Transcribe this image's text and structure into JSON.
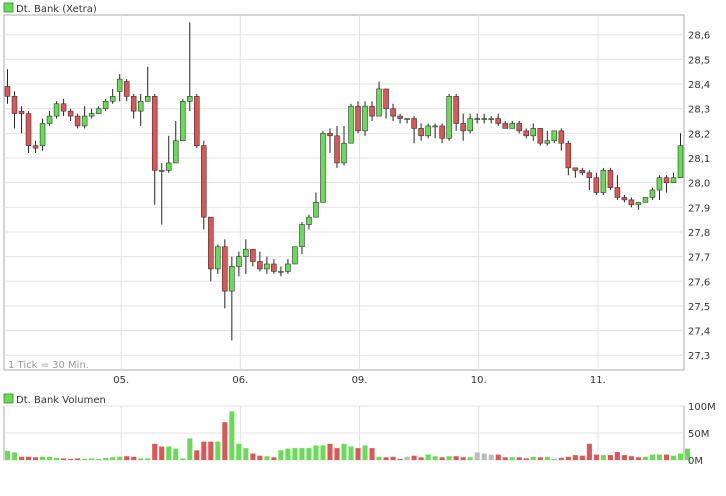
{
  "price_chart": {
    "legend_label": "Dt. Bank (Xetra)",
    "footnote": "1 Tick = 30 Min.",
    "colors": {
      "up": "#66dd55",
      "down": "#dd5555",
      "neutral": "#bbbbbb",
      "grid": "#e3e3e3"
    }
  },
  "volume_chart": {
    "legend_label": "Dt. Bank Volumen"
  },
  "chart_data": [
    {
      "type": "candlestick",
      "title": "Dt. Bank (Xetra)",
      "x_tick_labels": [
        "05.",
        "06.",
        "09.",
        "10.",
        "11."
      ],
      "y_tick_labels": [
        "27,3",
        "27,4",
        "27,5",
        "27,6",
        "27,7",
        "27,8",
        "27,9",
        "28,0",
        "28,1",
        "28,2",
        "28,3",
        "28,4",
        "28,5",
        "28,6"
      ],
      "ylim": [
        27.24,
        28.68
      ],
      "grid": true,
      "candles": [
        [
          28.39,
          28.35,
          28.46,
          28.32
        ],
        [
          28.35,
          28.28,
          28.37,
          28.22
        ],
        [
          28.29,
          28.28,
          28.31,
          28.2
        ],
        [
          28.28,
          28.15,
          28.29,
          28.12
        ],
        [
          28.15,
          28.14,
          28.17,
          28.12
        ],
        [
          28.15,
          28.24,
          28.26,
          28.13
        ],
        [
          28.24,
          28.27,
          28.29,
          28.23
        ],
        [
          28.27,
          28.32,
          28.33,
          28.26
        ],
        [
          28.32,
          28.29,
          28.34,
          28.27
        ],
        [
          28.29,
          28.27,
          28.3,
          28.25
        ],
        [
          28.27,
          28.23,
          28.28,
          28.22
        ],
        [
          28.23,
          28.27,
          28.31,
          28.22
        ],
        [
          28.27,
          28.28,
          28.3,
          28.26
        ],
        [
          28.28,
          28.3,
          28.31,
          28.28
        ],
        [
          28.3,
          28.33,
          28.34,
          28.29
        ],
        [
          28.33,
          28.35,
          28.38,
          28.32
        ],
        [
          28.37,
          28.42,
          28.44,
          28.33
        ],
        [
          28.41,
          28.35,
          28.42,
          28.33
        ],
        [
          28.35,
          28.29,
          28.36,
          28.26
        ],
        [
          28.29,
          28.33,
          28.36,
          28.23
        ],
        [
          28.33,
          28.35,
          28.47,
          28.33
        ],
        [
          28.35,
          28.05,
          28.36,
          27.91
        ],
        [
          28.05,
          28.05,
          28.08,
          27.83
        ],
        [
          28.05,
          28.08,
          28.19,
          28.04
        ],
        [
          28.08,
          28.17,
          28.25,
          28.08
        ],
        [
          28.17,
          28.33,
          28.34,
          28.17
        ],
        [
          28.33,
          28.35,
          28.65,
          28.29
        ],
        [
          28.35,
          28.15,
          28.36,
          28.14
        ],
        [
          28.15,
          27.86,
          28.17,
          27.81
        ],
        [
          27.86,
          27.65,
          27.86,
          27.6
        ],
        [
          27.65,
          27.74,
          27.75,
          27.63
        ],
        [
          27.74,
          27.56,
          27.77,
          27.49
        ],
        [
          27.56,
          27.66,
          27.7,
          27.36
        ],
        [
          27.66,
          27.7,
          27.72,
          27.62
        ],
        [
          27.7,
          27.73,
          27.77,
          27.63
        ],
        [
          27.73,
          27.68,
          27.73,
          27.66
        ],
        [
          27.68,
          27.65,
          27.72,
          27.64
        ],
        [
          27.65,
          27.67,
          27.7,
          27.63
        ],
        [
          27.67,
          27.64,
          27.69,
          27.63
        ],
        [
          27.64,
          27.64,
          27.66,
          27.62
        ],
        [
          27.64,
          27.67,
          27.69,
          27.63
        ],
        [
          27.67,
          27.74,
          27.74,
          27.67
        ],
        [
          27.74,
          27.83,
          27.84,
          27.71
        ],
        [
          27.83,
          27.86,
          27.87,
          27.81
        ],
        [
          27.86,
          27.92,
          27.96,
          27.86
        ],
        [
          27.92,
          28.2,
          28.21,
          27.92
        ],
        [
          28.2,
          28.19,
          28.22,
          28.12
        ],
        [
          28.19,
          28.08,
          28.23,
          28.06
        ],
        [
          28.08,
          28.16,
          28.23,
          28.07
        ],
        [
          28.16,
          28.31,
          28.32,
          28.16
        ],
        [
          28.31,
          28.21,
          28.33,
          28.2
        ],
        [
          28.21,
          28.31,
          28.33,
          28.19
        ],
        [
          28.31,
          28.27,
          28.33,
          28.25
        ],
        [
          28.27,
          28.38,
          28.41,
          28.27
        ],
        [
          28.38,
          28.3,
          28.36,
          28.26
        ],
        [
          28.3,
          28.27,
          28.32,
          28.25
        ],
        [
          28.27,
          28.26,
          28.28,
          28.24
        ],
        [
          28.26,
          28.26,
          28.26,
          28.24
        ],
        [
          28.26,
          28.22,
          28.27,
          28.16
        ],
        [
          28.22,
          28.19,
          28.24,
          28.17
        ],
        [
          28.19,
          28.23,
          28.24,
          28.18
        ],
        [
          28.23,
          28.23,
          28.24,
          28.18
        ],
        [
          28.23,
          28.18,
          28.24,
          28.16
        ],
        [
          28.18,
          28.35,
          28.36,
          28.17
        ],
        [
          28.35,
          28.24,
          28.36,
          28.21
        ],
        [
          28.24,
          28.21,
          28.28,
          28.17
        ],
        [
          28.21,
          28.26,
          28.28,
          28.2
        ],
        [
          28.26,
          28.26,
          28.28,
          28.24
        ],
        [
          28.26,
          28.26,
          28.28,
          28.24
        ],
        [
          28.26,
          28.26,
          28.27,
          28.24
        ],
        [
          28.26,
          28.24,
          28.28,
          28.23
        ],
        [
          28.24,
          28.22,
          28.25,
          28.22
        ],
        [
          28.22,
          28.24,
          28.25,
          28.22
        ],
        [
          28.24,
          28.21,
          28.25,
          28.2
        ],
        [
          28.21,
          28.19,
          28.22,
          28.18
        ],
        [
          28.19,
          28.22,
          28.24,
          28.17
        ],
        [
          28.22,
          28.16,
          28.22,
          28.15
        ],
        [
          28.16,
          28.17,
          28.21,
          28.15
        ],
        [
          28.17,
          28.21,
          28.21,
          28.16
        ],
        [
          28.21,
          28.16,
          28.22,
          28.13
        ],
        [
          28.16,
          28.06,
          28.17,
          28.03
        ],
        [
          28.06,
          28.05,
          28.06,
          28.02
        ],
        [
          28.05,
          28.04,
          28.06,
          28.03
        ],
        [
          28.04,
          28.02,
          28.05,
          27.97
        ],
        [
          28.02,
          27.96,
          28.04,
          27.95
        ],
        [
          27.96,
          28.05,
          28.06,
          27.95
        ],
        [
          28.05,
          27.98,
          28.06,
          27.97
        ],
        [
          27.98,
          27.94,
          28.03,
          27.93
        ],
        [
          27.94,
          27.93,
          27.95,
          27.92
        ],
        [
          27.93,
          27.91,
          27.94,
          27.9
        ],
        [
          27.91,
          27.92,
          27.92,
          27.89
        ],
        [
          27.92,
          27.94,
          27.94,
          27.92
        ],
        [
          27.94,
          27.97,
          27.98,
          27.93
        ],
        [
          27.97,
          28.02,
          28.03,
          27.93
        ],
        [
          28.02,
          28.0,
          28.03,
          27.96
        ],
        [
          28.0,
          28.02,
          28.04,
          28.0
        ],
        [
          28.02,
          28.15,
          28.2,
          28.02
        ]
      ]
    },
    {
      "type": "bar",
      "title": "Dt. Bank Volumen",
      "y_tick_labels": [
        "0M",
        "50M",
        "100M"
      ],
      "ylim": [
        0,
        100
      ],
      "values": [
        17,
        14,
        6,
        6,
        5,
        6,
        6,
        4,
        3,
        2,
        3,
        2,
        3,
        2,
        4,
        5,
        6,
        7,
        6,
        3,
        3,
        30,
        25,
        25,
        21,
        3,
        40,
        18,
        34,
        34,
        34,
        70,
        90,
        30,
        22,
        12,
        8,
        7,
        5,
        18,
        21,
        22,
        22,
        22,
        27,
        27,
        30,
        22,
        30,
        25,
        22,
        27,
        22,
        6,
        5,
        6,
        2,
        6,
        8,
        5,
        10,
        7,
        5,
        7,
        7,
        5,
        5,
        14,
        12,
        10,
        10,
        5,
        5,
        5,
        3,
        6,
        5,
        6,
        2,
        4,
        6,
        9,
        8,
        30,
        10,
        9,
        9,
        15,
        9,
        7,
        5,
        6,
        10,
        10,
        10,
        8,
        12,
        21
      ],
      "colors": [
        "g",
        "g",
        "r",
        "r",
        "r",
        "g",
        "g",
        "g",
        "r",
        "r",
        "r",
        "g",
        "g",
        "g",
        "g",
        "g",
        "g",
        "r",
        "r",
        "g",
        "g",
        "r",
        "r",
        "g",
        "g",
        "g",
        "g",
        "r",
        "r",
        "r",
        "g",
        "r",
        "g",
        "g",
        "g",
        "r",
        "r",
        "g",
        "r",
        "g",
        "g",
        "g",
        "g",
        "g",
        "g",
        "g",
        "r",
        "r",
        "g",
        "g",
        "r",
        "g",
        "r",
        "g",
        "r",
        "r",
        "r",
        "n",
        "r",
        "r",
        "g",
        "g",
        "r",
        "g",
        "r",
        "r",
        "g",
        "n",
        "n",
        "n",
        "r",
        "r",
        "g",
        "r",
        "r",
        "g",
        "r",
        "g",
        "g",
        "r",
        "r",
        "r",
        "r",
        "r",
        "r",
        "g",
        "r",
        "r",
        "r",
        "r",
        "r",
        "g",
        "g",
        "g",
        "r",
        "g",
        "g",
        "g"
      ]
    }
  ]
}
